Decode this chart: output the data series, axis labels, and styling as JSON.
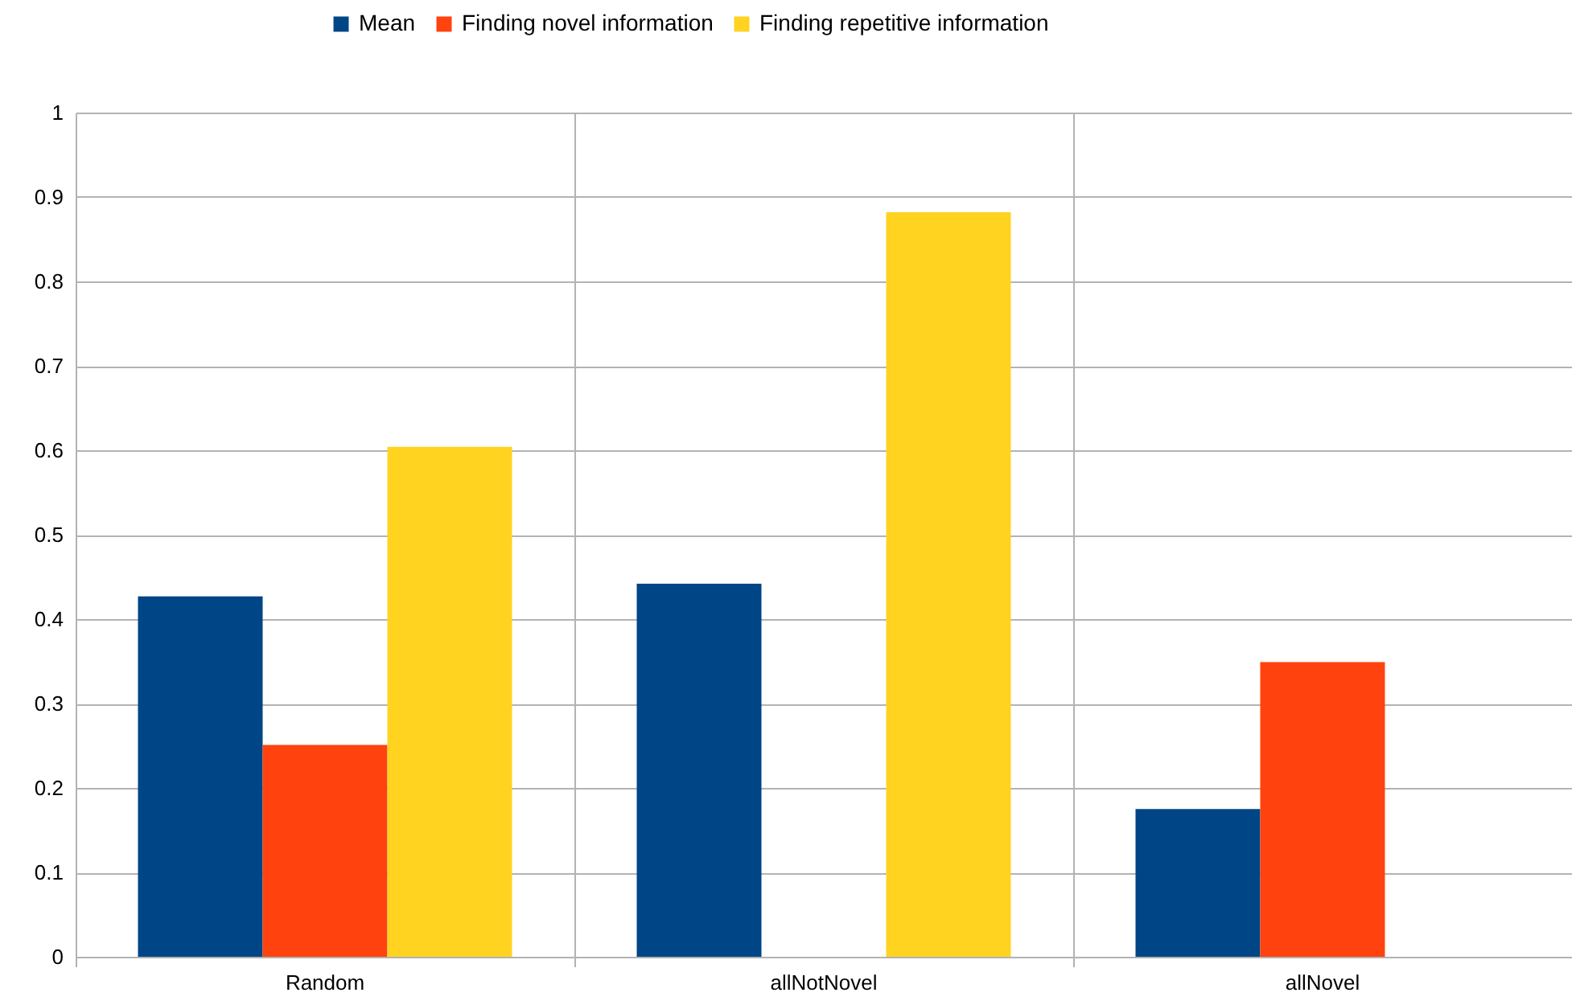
{
  "chart_data": {
    "type": "bar",
    "categories": [
      "Random",
      "allNotNovel",
      "allNovel"
    ],
    "series": [
      {
        "name": "Mean",
        "color": "#004586",
        "values": [
          0.427,
          0.442,
          0.175
        ]
      },
      {
        "name": "Finding novel information",
        "color": "#ff420e",
        "values": [
          0.251,
          0,
          0.349
        ]
      },
      {
        "name": "Finding repetitive information",
        "color": "#ffd320",
        "values": [
          0.604,
          0.882,
          0
        ]
      }
    ],
    "ylim": [
      0,
      1
    ],
    "yticks": [
      0,
      0.1,
      0.2,
      0.3,
      0.4,
      0.5,
      0.6,
      0.7,
      0.8,
      0.9,
      1
    ],
    "grid": true,
    "legend": "top"
  }
}
